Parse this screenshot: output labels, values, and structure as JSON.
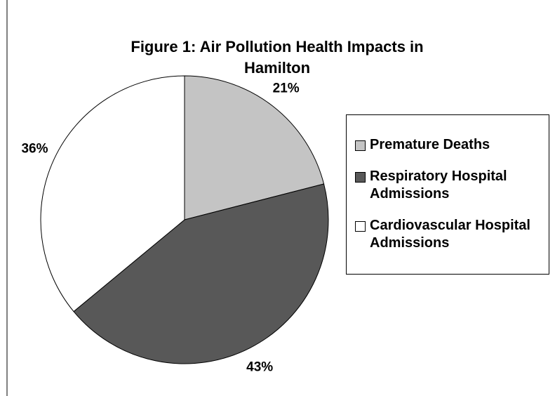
{
  "chart_data": {
    "type": "pie",
    "title": "Figure 1: Air Pollution Health Impacts in Hamilton",
    "categories": [
      "Premature Deaths",
      "Respiratory Hospital Admissions",
      "Cardiovascular Hospital Admissions"
    ],
    "values": [
      21,
      43,
      36
    ],
    "value_labels": [
      "21%",
      "43%",
      "36%"
    ],
    "colors": [
      "#c4c4c4",
      "#585858",
      "#ffffff"
    ],
    "legend": "right"
  }
}
